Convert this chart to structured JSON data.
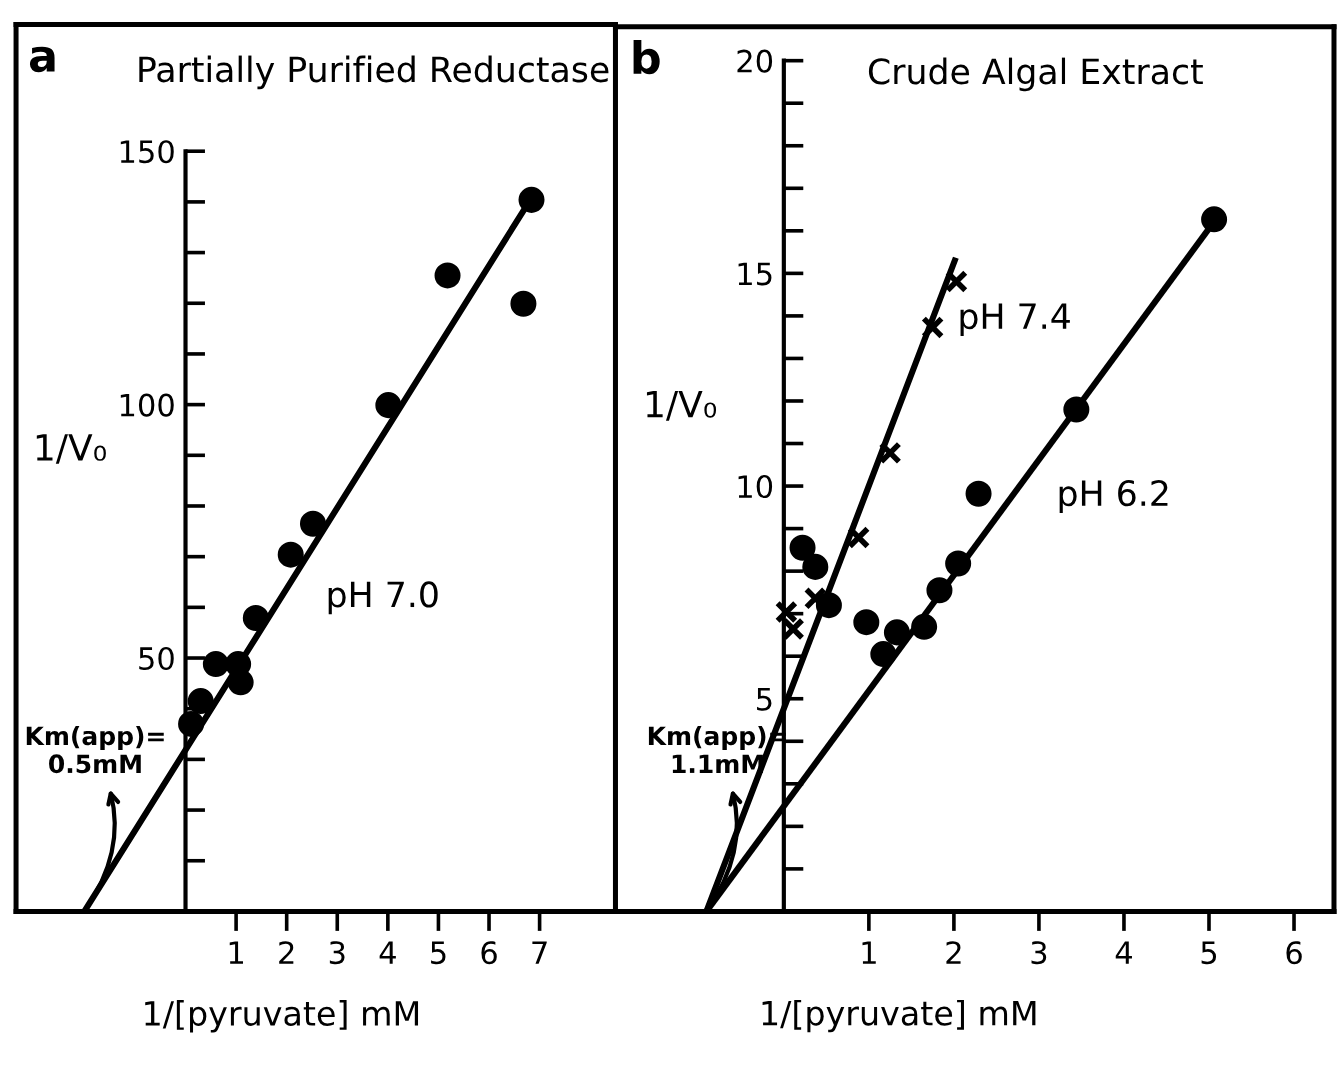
{
  "chart_data": [
    {
      "type": "scatter",
      "title": "Partially Purified Reductase",
      "xlabel": "1/[pyruvate] mM",
      "ylabel": "1/V₀",
      "annotations": [
        "a",
        {
          "text": "Km(app)=\n0.5mM",
          "x": -2,
          "y": 0
        }
      ],
      "xlim": [
        -3.35,
        8.5
      ],
      "ylim": [
        0,
        175
      ],
      "xticks": [
        1,
        2,
        3,
        4,
        5,
        6,
        7
      ],
      "yticks": [
        {
          "value": 10,
          "label": null
        },
        {
          "value": 20,
          "label": null
        },
        {
          "value": 30,
          "label": null
        },
        {
          "value": 40,
          "label": null
        },
        50,
        {
          "value": 60,
          "label": null
        },
        {
          "value": 70,
          "label": null
        },
        {
          "value": 80,
          "label": null
        },
        {
          "value": 90,
          "label": null
        },
        100,
        {
          "value": 110,
          "label": null
        },
        {
          "value": 120,
          "label": null
        },
        {
          "value": 130,
          "label": null
        },
        {
          "value": 140,
          "label": null
        },
        150
      ],
      "grid": false,
      "series": [
        {
          "color": "#000000",
          "marker": "circle",
          "x": [
            0.11,
            0.3,
            0.6,
            1.04,
            1.09,
            1.39,
            2.08,
            2.52,
            4.01,
            5.18,
            6.68,
            6.84
          ],
          "values": [
            37,
            41.5,
            48.8,
            48.8,
            45.2,
            57.9,
            70.4,
            76.5,
            99.9,
            125.5,
            119.9,
            140.4
          ]
        },
        {
          "type": "line",
          "name": "pH 7.0",
          "color": "#000000",
          "marker": "none",
          "x": [
            -2,
            6.84
          ],
          "values": [
            0,
            140.8
          ]
        }
      ]
    },
    {
      "type": "scatter",
      "title": "Crude Algal Extract",
      "xlabel": "1/[pyruvate] mM",
      "ylabel": "1/V₀",
      "annotations": [
        "b",
        {
          "text": "Km(app)=\n1.1mM",
          "x": -0.91,
          "y": 0
        }
      ],
      "xlim": [
        -1.98,
        6.47
      ],
      "ylim": [
        0,
        20.8
      ],
      "xticks": [
        1,
        2,
        3,
        4,
        5,
        6
      ],
      "yticks": [
        {
          "value": 1,
          "label": null
        },
        {
          "value": 2,
          "label": null
        },
        {
          "value": 3,
          "label": null
        },
        {
          "value": 4,
          "label": null
        },
        5,
        {
          "value": 6,
          "label": null
        },
        {
          "value": 7,
          "label": null
        },
        {
          "value": 8,
          "label": null
        },
        {
          "value": 9,
          "label": null
        },
        10,
        {
          "value": 11,
          "label": null
        },
        {
          "value": 12,
          "label": null
        },
        {
          "value": 13,
          "label": null
        },
        {
          "value": 14,
          "label": null
        },
        15,
        {
          "value": 16,
          "label": null
        },
        {
          "value": 17,
          "label": null
        },
        {
          "value": 18,
          "label": null
        },
        {
          "value": 19,
          "label": null
        },
        20
      ],
      "grid": false,
      "series": [
        {
          "color": "#000000",
          "marker": "cross",
          "x": [
            0.03,
            0.11,
            0.37,
            0.88,
            1.25,
            1.75,
            2.03
          ],
          "values": [
            7.04,
            6.64,
            7.36,
            8.79,
            10.78,
            13.73,
            14.81
          ]
        },
        {
          "type": "line",
          "name": "pH 7.4",
          "color": "#000000",
          "marker": "none",
          "x": [
            -0.91,
            2.01
          ],
          "values": [
            0,
            15.3
          ]
        },
        {
          "color": "#000000",
          "marker": "circle",
          "x": [
            0.22,
            0.37,
            0.53,
            0.97,
            1.17,
            1.33,
            1.65,
            1.83,
            2.05,
            2.29,
            3.44,
            5.06
          ],
          "values": [
            8.55,
            8.1,
            7.2,
            6.8,
            6.05,
            6.56,
            6.69,
            7.55,
            8.18,
            9.82,
            11.8,
            16.27
          ]
        },
        {
          "type": "line",
          "name": "pH 6.2",
          "color": "#000000",
          "marker": "none",
          "x": [
            -0.91,
            5.08
          ],
          "values": [
            0,
            16.27
          ]
        }
      ]
    }
  ]
}
